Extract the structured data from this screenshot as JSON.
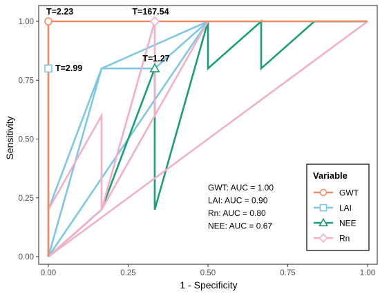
{
  "chart_data": {
    "type": "line",
    "title": "",
    "xlabel": "1 - Specificity",
    "ylabel": "Sensitivity",
    "xlim": [
      0,
      1
    ],
    "ylim": [
      0,
      1
    ],
    "x_ticks": [
      "0.00",
      "0.25",
      "0.50",
      "0.75",
      "1.00"
    ],
    "y_ticks": [
      "0.00",
      "0.25",
      "0.50",
      "0.75",
      "1.00"
    ],
    "grid": false,
    "reference_line": "diagonal dashed",
    "legend": {
      "title": "Variable",
      "position": "bottom-right",
      "entries": [
        {
          "label": "GWT",
          "color": "#F08C64",
          "marker": "circle"
        },
        {
          "label": "LAI",
          "color": "#7EC8E3",
          "marker": "square"
        },
        {
          "label": "NEE",
          "color": "#1B9E77",
          "marker": "triangle"
        },
        {
          "label": "Rn",
          "color": "#F4AFC6",
          "marker": "diamond"
        }
      ]
    },
    "auc_labels": [
      "GWT: AUC = 1.00",
      "LAI: AUC = 0.90",
      "Rn: AUC = 0.80",
      "NEE: AUC = 0.67"
    ],
    "series": [
      {
        "name": "GWT",
        "color": "#F08C64",
        "points": [
          [
            0,
            0
          ],
          [
            0,
            1
          ],
          [
            0.1667,
            1
          ],
          [
            1,
            1
          ]
        ]
      },
      {
        "name": "LAI",
        "color": "#7EC8E3",
        "points": [
          [
            0,
            0
          ],
          [
            0,
            0.8
          ],
          [
            0,
            0.2
          ],
          [
            0.1667,
            0.8
          ],
          [
            0.3333,
            0.8
          ],
          [
            0.5,
            1
          ],
          [
            0.1667,
            0.8
          ],
          [
            0,
            0
          ],
          [
            0.5,
            1
          ],
          [
            1,
            1
          ]
        ]
      },
      {
        "name": "NEE",
        "color": "#1B9E77",
        "points": [
          [
            0,
            0
          ],
          [
            0.1667,
            0.2
          ],
          [
            0.3333,
            0.8
          ],
          [
            0.3333,
            0.2
          ],
          [
            0.5,
            1
          ],
          [
            0.5,
            0.8
          ],
          [
            0.6667,
            1
          ],
          [
            0.6667,
            0.8
          ],
          [
            0.8333,
            1
          ],
          [
            1,
            1
          ]
        ]
      },
      {
        "name": "Rn",
        "color": "#F4AFC6",
        "points": [
          [
            0,
            0
          ],
          [
            0,
            0.6
          ],
          [
            0,
            0.2
          ],
          [
            0.1667,
            0.6
          ],
          [
            0.1667,
            0.2
          ],
          [
            0.3333,
            1
          ],
          [
            0.3333,
            0.6
          ],
          [
            0.5,
            1
          ],
          [
            0.1667,
            0.2
          ],
          [
            0,
            0
          ],
          [
            1,
            1
          ]
        ]
      }
    ],
    "annotations": [
      {
        "text": "T=2.23",
        "series": "GWT",
        "x": 0,
        "y": 1
      },
      {
        "text": "T=2.99",
        "series": "LAI",
        "x": 0,
        "y": 0.8
      },
      {
        "text": "T=167.54",
        "series": "Rn",
        "x": 0.3333,
        "y": 1
      },
      {
        "text": "T=1.27",
        "series": "NEE",
        "x": 0.3333,
        "y": 0.8
      }
    ]
  }
}
